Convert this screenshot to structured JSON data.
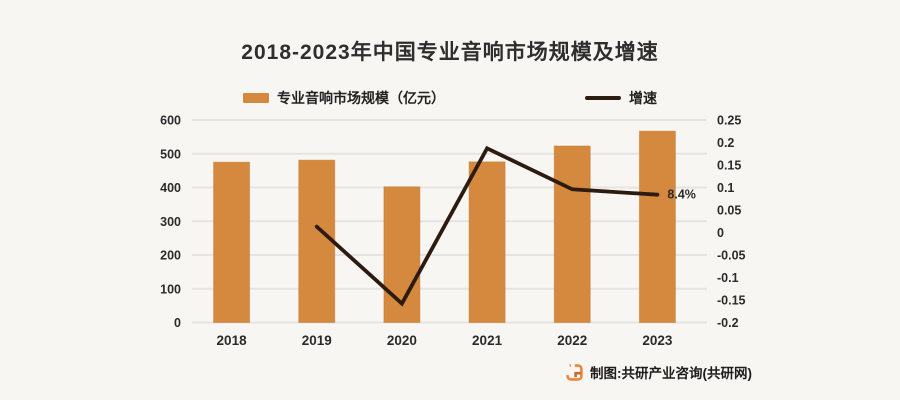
{
  "title": "2018-2023年中国专业音响市场规模及增速",
  "legend": {
    "bar_label": "专业音响市场规模（亿元）",
    "line_label": "增速"
  },
  "footer": {
    "text": "制图:共研产业咨询(共研网)",
    "logo": "gongyan-logo",
    "logo_color": "#E8873D"
  },
  "colors": {
    "bar": "#D5893E",
    "bar_edge": "#B9762F",
    "line": "#2E1B10",
    "grid": "#e5e4e1",
    "text": "#2b2b2b",
    "background": "#f7f6f3"
  },
  "chart_data": {
    "type": "bar",
    "subtype": "bar+line combo, dual axis",
    "title": "2018-2023年中国专业音响市场规模及增速",
    "categories": [
      "2018",
      "2019",
      "2020",
      "2021",
      "2022",
      "2023"
    ],
    "series": [
      {
        "name": "专业音响市场规模（亿元）",
        "type": "bar",
        "axis": "left",
        "color": "#D5893E",
        "values": [
          475,
          481,
          402,
          476,
          523,
          567
        ]
      },
      {
        "name": "增速",
        "type": "line",
        "axis": "right",
        "color": "#2E1B10",
        "values": [
          null,
          0.013,
          -0.158,
          0.187,
          0.096,
          0.084
        ]
      }
    ],
    "left_axis": {
      "min": 0,
      "max": 600,
      "ticks": [
        600,
        500,
        400,
        300,
        200,
        100,
        0
      ]
    },
    "right_axis": {
      "min": -0.2,
      "max": 0.25,
      "ticks": [
        0.25,
        0.2,
        0.15,
        0.1,
        0.05,
        0,
        -0.05,
        -0.1,
        -0.15,
        -0.2
      ],
      "tick_labels": [
        "0.25",
        "0.2",
        "0.15",
        "0.1",
        "0.05",
        "0",
        "-0.05",
        "-0.1",
        "-0.15",
        "-0.2"
      ]
    },
    "grid": true,
    "legend_position": "top",
    "annotations": [
      {
        "text": "8.4%",
        "category": "2023",
        "series": "增速"
      }
    ]
  }
}
